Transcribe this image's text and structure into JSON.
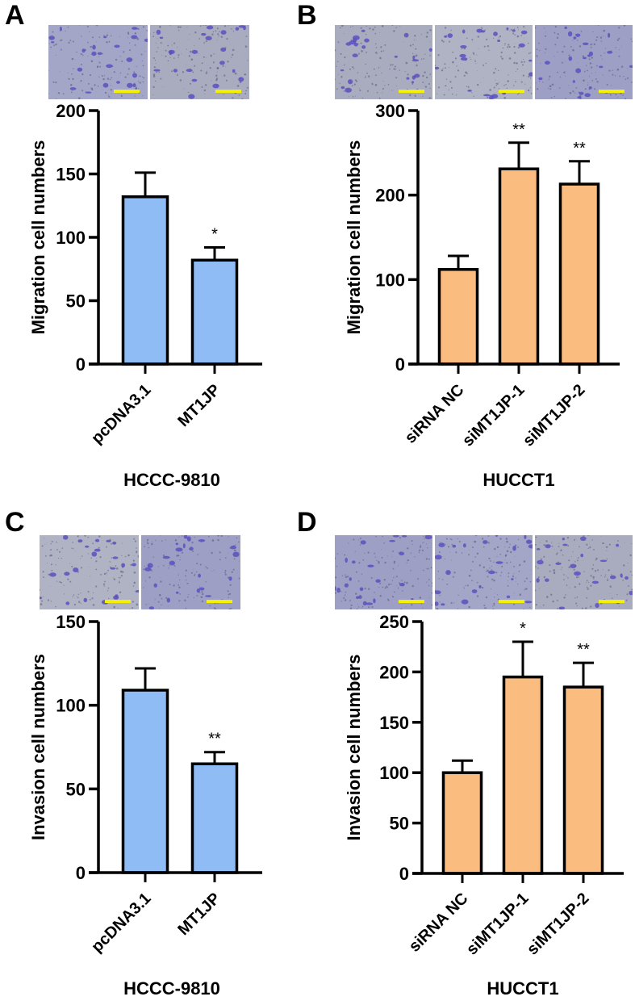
{
  "panels": [
    {
      "id": "A",
      "letter": "A"
    },
    {
      "id": "B",
      "letter": "B"
    },
    {
      "id": "C",
      "letter": "C"
    },
    {
      "id": "D",
      "letter": "D"
    }
  ],
  "colors": {
    "blue_bar": "#8fbcf5",
    "orange_bar": "#fbbd7f",
    "axis": "#000000",
    "scale_bar": "#f5f000",
    "micrograph_bg": "#9a9cc0",
    "cell_stain": "#5b50c0"
  },
  "chart_data": [
    {
      "panel": "A",
      "type": "bar",
      "title": "",
      "xlabel": "HCCC-9810",
      "ylabel": "Migration cell numbers",
      "categories": [
        "pcDNA3.1",
        "MT1JP"
      ],
      "values": [
        132,
        82
      ],
      "error_upper": [
        151,
        92
      ],
      "significance": [
        "",
        "*"
      ],
      "yticks": [
        0,
        50,
        100,
        150,
        200
      ],
      "ylim": [
        0,
        200
      ],
      "bar_color": "#8fbcf5",
      "grid": false,
      "legend": null
    },
    {
      "panel": "B",
      "type": "bar",
      "title": "",
      "xlabel": "HUCCT1",
      "ylabel": "Migration cell numbers",
      "categories": [
        "siRNA NC",
        "siMT1JP-1",
        "siMT1JP-2"
      ],
      "values": [
        112,
        231,
        213
      ],
      "error_upper": [
        128,
        262,
        240
      ],
      "significance": [
        "",
        "**",
        "**"
      ],
      "yticks": [
        0,
        100,
        200,
        300
      ],
      "ylim": [
        0,
        300
      ],
      "bar_color": "#fbbd7f",
      "grid": false,
      "legend": null
    },
    {
      "panel": "C",
      "type": "bar",
      "title": "",
      "xlabel": "HCCC-9810",
      "ylabel": "Invasion cell numbers",
      "categories": [
        "pcDNA3.1",
        "MT1JP"
      ],
      "values": [
        109,
        65
      ],
      "error_upper": [
        122,
        72
      ],
      "significance": [
        "",
        "**"
      ],
      "yticks": [
        0,
        50,
        100,
        150
      ],
      "ylim": [
        0,
        150
      ],
      "bar_color": "#8fbcf5",
      "grid": false,
      "legend": null
    },
    {
      "panel": "D",
      "type": "bar",
      "title": "",
      "xlabel": "HUCCT1",
      "ylabel": "Invasion cell numbers",
      "categories": [
        "siRNA NC",
        "siMT1JP-1",
        "siMT1JP-2"
      ],
      "values": [
        100,
        195,
        185
      ],
      "error_upper": [
        112,
        230,
        209
      ],
      "significance": [
        "",
        "*",
        "**"
      ],
      "yticks": [
        0,
        50,
        100,
        150,
        200,
        250
      ],
      "ylim": [
        0,
        250
      ],
      "bar_color": "#fbbd7f",
      "grid": false,
      "legend": null
    }
  ]
}
